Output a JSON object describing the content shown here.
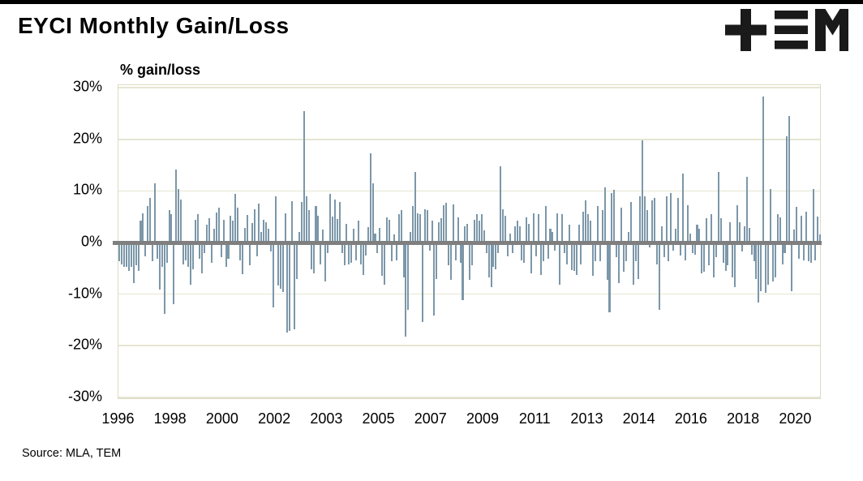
{
  "header": {
    "title": "EYCI Monthly Gain/Loss",
    "logo_color": "#1a1a1a"
  },
  "footer": {
    "source": "Source: MLA, TEM"
  },
  "chart_data": {
    "type": "bar",
    "title": "EYCI Monthly Gain/Loss",
    "ylabel": "% gain/loss",
    "unit": "%",
    "frequency": "monthly",
    "start": "1996-01",
    "end": "2020-09",
    "ylim": [
      -30.5,
      30.5
    ],
    "grid": true,
    "legend": false,
    "bar_color": "#7c97a9",
    "zero_line_color": "#7f7f7f",
    "gridline_color": "#e6e6d2",
    "y_ticks": [
      {
        "label": "30%",
        "value": 30
      },
      {
        "label": "20%",
        "value": 20
      },
      {
        "label": "10%",
        "value": 10
      },
      {
        "label": "0%",
        "value": 0
      },
      {
        "label": "-10%",
        "value": -10
      },
      {
        "label": "-20%",
        "value": -20
      },
      {
        "label": "-30%",
        "value": -30
      }
    ],
    "x_ticks": [
      {
        "label": "1996",
        "month_index": 0
      },
      {
        "label": "1998",
        "month_index": 22
      },
      {
        "label": "2000",
        "month_index": 44
      },
      {
        "label": "2002",
        "month_index": 66
      },
      {
        "label": "2003",
        "month_index": 88
      },
      {
        "label": "2005",
        "month_index": 110
      },
      {
        "label": "2007",
        "month_index": 132
      },
      {
        "label": "2009",
        "month_index": 154
      },
      {
        "label": "2011",
        "month_index": 176
      },
      {
        "label": "2013",
        "month_index": 198
      },
      {
        "label": "2014",
        "month_index": 220
      },
      {
        "label": "2016",
        "month_index": 242
      },
      {
        "label": "2018",
        "month_index": 264
      },
      {
        "label": "2020",
        "month_index": 286
      }
    ],
    "values": [
      -3.6,
      -4.2,
      -4.7,
      -4.7,
      -5.5,
      -4.7,
      -7.8,
      -4.4,
      -5.5,
      4.2,
      5.7,
      -2.6,
      7.0,
      8.6,
      -3.6,
      11.5,
      -3.1,
      -9.1,
      -4.7,
      -13.8,
      -3.9,
      6.3,
      5.5,
      -12.0,
      14.2,
      10.4,
      8.3,
      -4.2,
      -3.4,
      -4.7,
      -8.1,
      -5.2,
      4.4,
      5.5,
      -3.1,
      -6.0,
      -2.1,
      3.4,
      4.7,
      -3.9,
      2.6,
      5.8,
      6.7,
      -2.9,
      4.4,
      -4.7,
      -3.1,
      5.2,
      4.2,
      9.4,
      6.8,
      -3.4,
      -6.2,
      2.9,
      5.4,
      -4.4,
      3.7,
      6.5,
      -2.6,
      7.6,
      2.1,
      4.4,
      3.9,
      2.6,
      -1.8,
      -12.5,
      9.0,
      -8.3,
      -8.9,
      -9.6,
      5.7,
      -17.4,
      -17.2,
      8.0,
      -16.9,
      -7.0,
      2.1,
      7.8,
      25.5,
      8.9,
      6.3,
      -5.2,
      -6.0,
      7.0,
      5.2,
      -4.2,
      2.5,
      -7.6,
      -2.1,
      9.4,
      5.0,
      8.3,
      4.5,
      7.8,
      -2.0,
      -4.4,
      3.6,
      -4.2,
      -3.9,
      2.6,
      -3.4,
      4.2,
      -4.2,
      -6.3,
      -2.5,
      3.0,
      17.3,
      11.5,
      1.8,
      -2.1,
      2.9,
      -6.5,
      -8.1,
      4.9,
      4.4,
      -3.6,
      1.6,
      -3.4,
      5.5,
      6.3,
      -6.8,
      -18.2,
      -13.0,
      2.0,
      7.0,
      13.6,
      5.7,
      5.5,
      -15.4,
      6.5,
      6.3,
      -1.6,
      4.2,
      -14.1,
      -7.0,
      3.9,
      4.7,
      7.3,
      7.7,
      -4.4,
      -7.3,
      7.4,
      -3.4,
      4.9,
      -3.9,
      -11.2,
      3.1,
      3.6,
      -7.3,
      -4.4,
      4.4,
      5.5,
      4.2,
      5.5,
      2.3,
      -2.1,
      -6.8,
      -8.6,
      -4.7,
      -5.2,
      -2.0,
      14.8,
      6.5,
      5.2,
      -2.6,
      1.8,
      -2.1,
      3.1,
      4.2,
      3.1,
      -3.4,
      -3.9,
      4.9,
      3.6,
      -6.0,
      5.7,
      -2.6,
      5.5,
      -6.3,
      -3.6,
      7.0,
      -3.1,
      2.6,
      2.1,
      -1.6,
      5.7,
      -8.1,
      5.5,
      -2.1,
      -4.2,
      3.4,
      -5.4,
      -5.5,
      -6.3,
      3.4,
      -4.2,
      6.0,
      8.1,
      5.5,
      4.2,
      -6.5,
      -3.6,
      7.0,
      -3.6,
      6.3,
      10.7,
      -7.3,
      -13.5,
      9.6,
      10.2,
      -2.9,
      -7.8,
      6.8,
      -5.7,
      -3.6,
      2.1,
      7.8,
      -8.1,
      -3.6,
      -7.0,
      8.9,
      19.8,
      8.9,
      6.3,
      -1.0,
      8.1,
      8.6,
      -4.2,
      -13.0,
      3.1,
      -2.9,
      8.9,
      -3.6,
      9.6,
      -1.6,
      2.6,
      8.6,
      -2.5,
      13.4,
      -3.4,
      7.3,
      1.8,
      -2.1,
      -2.3,
      3.4,
      2.6,
      -6.0,
      -5.7,
      4.7,
      -4.4,
      5.5,
      -6.8,
      -2.9,
      13.7,
      4.7,
      -3.9,
      -5.5,
      -4.4,
      3.9,
      -6.8,
      -8.6,
      7.3,
      3.9,
      -1.8,
      3.1,
      12.7,
      2.9,
      -2.3,
      -3.6,
      -7.0,
      -11.6,
      -9.4,
      28.3,
      -9.7,
      -8.1,
      10.3,
      -7.5,
      -6.8,
      5.5,
      4.9,
      -4.2,
      -2.0,
      20.6,
      24.6,
      -9.4,
      2.5,
      6.9,
      -3.1,
      5.2,
      -3.4,
      6.0,
      -3.6,
      -3.9,
      10.4,
      -3.4,
      5.0,
      1.5
    ]
  }
}
